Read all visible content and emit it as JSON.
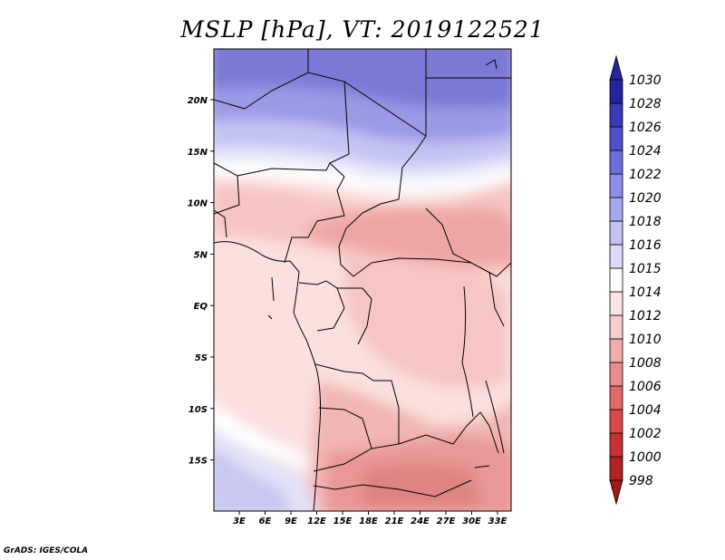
{
  "title": "MSLP [hPa], VT: 2019122521",
  "credit": "GrADS: IGES/COLA",
  "map": {
    "lat_labels": [
      "20N",
      "15N",
      "10N",
      "5N",
      "EQ",
      "5S",
      "10S",
      "15S"
    ],
    "lon_labels": [
      "3E",
      "6E",
      "9E",
      "12E",
      "15E",
      "18E",
      "21E",
      "24E",
      "27E",
      "30E",
      "33E"
    ]
  },
  "chart_data": {
    "type": "heatmap",
    "title": "MSLP [hPa], VT: 2019122521",
    "colorbar": {
      "levels": [
        "998",
        "1000",
        "1002",
        "1004",
        "1006",
        "1008",
        "1010",
        "1012",
        "1014",
        "1015",
        "1016",
        "1018",
        "1020",
        "1022",
        "1024",
        "1026",
        "1028",
        "1030"
      ],
      "colors": [
        "#a01818",
        "#b22222",
        "#c83232",
        "#d84a4a",
        "#e06a6a",
        "#e88c8c",
        "#f2aaaa",
        "#f8cccc",
        "#fde4e4",
        "#ffffff",
        "#dcdcfa",
        "#c2c2f4",
        "#a8a8ee",
        "#8e8ee6",
        "#6f6fdc",
        "#5050cc",
        "#3a3ab6",
        "#24249c"
      ]
    }
  }
}
